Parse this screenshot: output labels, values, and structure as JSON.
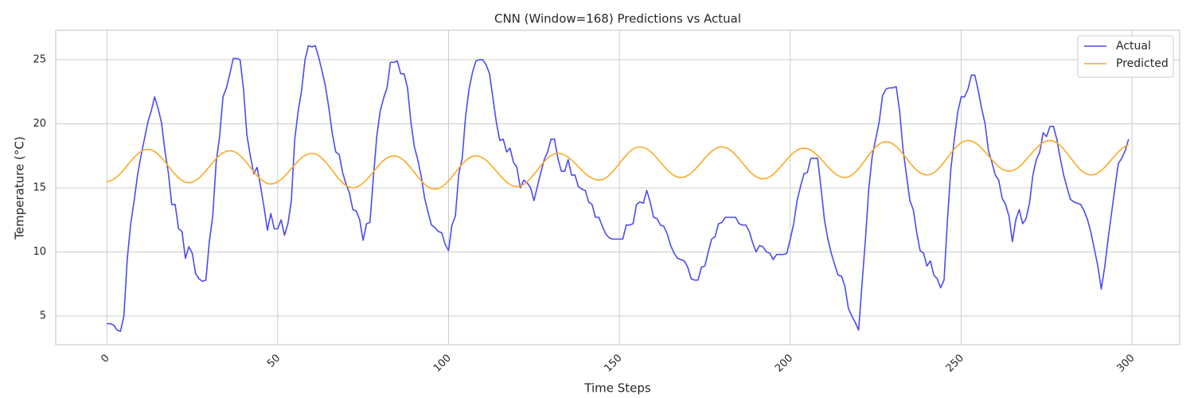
{
  "chart_data": {
    "type": "line",
    "title": "CNN (Window=168) Predictions vs Actual",
    "xlabel": "Time Steps",
    "ylabel": "Temperature (°C)",
    "x": [
      0,
      1,
      2,
      3,
      4,
      5,
      6,
      7,
      8,
      9,
      10,
      11,
      12,
      13,
      14,
      15,
      16,
      17,
      18,
      19,
      20,
      21,
      22,
      23,
      24,
      25,
      26,
      27,
      28,
      29,
      30,
      31,
      32,
      33,
      34,
      35,
      36,
      37,
      38,
      39,
      40,
      41,
      42,
      43,
      44,
      45,
      46,
      47,
      48,
      49,
      50,
      51,
      52,
      53,
      54,
      55,
      56,
      57,
      58,
      59,
      60,
      61,
      62,
      63,
      64,
      65,
      66,
      67,
      68,
      69,
      70,
      71,
      72,
      73,
      74,
      75,
      76,
      77,
      78,
      79,
      80,
      81,
      82,
      83,
      84,
      85,
      86,
      87,
      88,
      89,
      90,
      91,
      92,
      93,
      94,
      95,
      96,
      97,
      98,
      99,
      100,
      101,
      102,
      103,
      104,
      105,
      106,
      107,
      108,
      109,
      110,
      111,
      112,
      113,
      114,
      115,
      116,
      117,
      118,
      119,
      120,
      121,
      122,
      123,
      124,
      125,
      126,
      127,
      128,
      129,
      130,
      131,
      132,
      133,
      134,
      135,
      136,
      137,
      138,
      139,
      140,
      141,
      142,
      143,
      144,
      145,
      146,
      147,
      148,
      149,
      150,
      151,
      152,
      153,
      154,
      155,
      156,
      157,
      158,
      159,
      160,
      161,
      162,
      163,
      164,
      165,
      166,
      167,
      168,
      169,
      170,
      171,
      172,
      173,
      174,
      175,
      176,
      177,
      178,
      179,
      180,
      181,
      182,
      183,
      184,
      185,
      186,
      187,
      188,
      189,
      190,
      191,
      192,
      193,
      194,
      195,
      196,
      197,
      198,
      199,
      200,
      201,
      202,
      203,
      204,
      205,
      206,
      207,
      208,
      209,
      210,
      211,
      212,
      213,
      214,
      215,
      216,
      217,
      218,
      219,
      220,
      221,
      222,
      223,
      224,
      225,
      226,
      227,
      228,
      229,
      230,
      231,
      232,
      233,
      234,
      235,
      236,
      237,
      238,
      239,
      240,
      241,
      242,
      243,
      244,
      245,
      246,
      247,
      248,
      249,
      250,
      251,
      252,
      253,
      254,
      255,
      256,
      257,
      258,
      259,
      260,
      261,
      262,
      263,
      264,
      265,
      266,
      267,
      268,
      269,
      270,
      271,
      272,
      273,
      274,
      275,
      276,
      277,
      278,
      279,
      280,
      281,
      282,
      283,
      284,
      285,
      286,
      287,
      288,
      289,
      290,
      291,
      292,
      293,
      294,
      295,
      296,
      297,
      298,
      299
    ],
    "series": [
      {
        "name": "Actual",
        "color": "#4b4bf0",
        "values": [
          4.4,
          4.4,
          4.3,
          3.9,
          3.8,
          5.0,
          9.5,
          12.2,
          14.0,
          16.0,
          17.5,
          18.8,
          20.1,
          21.0,
          22.1,
          21.2,
          20.1,
          17.9,
          16.2,
          13.7,
          13.7,
          11.8,
          11.6,
          9.5,
          10.4,
          9.9,
          8.3,
          7.9,
          7.7,
          7.8,
          10.8,
          12.8,
          17.0,
          19.0,
          22.1,
          22.8,
          23.9,
          25.1,
          25.1,
          25.0,
          22.7,
          19.1,
          17.5,
          16.1,
          16.6,
          15.1,
          13.5,
          11.7,
          13.0,
          11.8,
          11.8,
          12.5,
          11.3,
          12.2,
          14.0,
          18.8,
          21.0,
          22.6,
          25.0,
          26.1,
          26.0,
          26.1,
          25.2,
          24.1,
          22.9,
          21.2,
          19.2,
          17.8,
          17.6,
          16.2,
          15.3,
          14.6,
          13.3,
          13.2,
          12.5,
          10.9,
          12.2,
          12.3,
          15.8,
          19.0,
          21.0,
          22.0,
          22.8,
          24.8,
          24.8,
          24.9,
          23.9,
          23.9,
          22.8,
          20.1,
          18.2,
          17.2,
          15.9,
          14.2,
          13.1,
          12.1,
          11.9,
          11.6,
          11.5,
          10.6,
          10.1,
          12.1,
          12.8,
          16.1,
          17.3,
          20.6,
          22.7,
          24.0,
          24.9,
          25.0,
          25.0,
          24.6,
          23.9,
          22.0,
          20.1,
          18.7,
          18.8,
          17.8,
          18.1,
          17.0,
          16.6,
          15.0,
          15.6,
          15.4,
          15.0,
          14.0,
          15.1,
          16.2,
          17.2,
          17.8,
          18.8,
          18.8,
          17.3,
          16.3,
          16.3,
          17.2,
          16.0,
          16.0,
          15.1,
          14.9,
          14.8,
          13.9,
          13.7,
          12.7,
          12.7,
          12.0,
          11.4,
          11.1,
          11.0,
          11.0,
          11.0,
          11.0,
          12.1,
          12.1,
          12.2,
          13.7,
          13.9,
          13.8,
          14.8,
          13.9,
          12.7,
          12.6,
          12.1,
          12.0,
          11.4,
          10.5,
          9.9,
          9.5,
          9.4,
          9.3,
          8.8,
          7.9,
          7.8,
          7.8,
          8.8,
          8.9,
          10.0,
          11.0,
          11.2,
          12.2,
          12.3,
          12.7,
          12.7,
          12.7,
          12.7,
          12.2,
          12.1,
          12.1,
          11.6,
          10.7,
          10.0,
          10.5,
          10.4,
          10.0,
          9.9,
          9.4,
          9.8,
          9.8,
          9.8,
          9.9,
          11.0,
          12.2,
          14.0,
          15.1,
          16.1,
          16.2,
          17.3,
          17.3,
          17.3,
          15.0,
          12.5,
          11.0,
          9.9,
          9.0,
          8.2,
          8.1,
          7.3,
          5.6,
          5.0,
          4.5,
          3.9,
          7.5,
          11.0,
          15.0,
          17.5,
          18.8,
          20.1,
          22.2,
          22.7,
          22.8,
          22.8,
          22.9,
          21.0,
          18.0,
          16.0,
          14.0,
          13.3,
          11.5,
          10.1,
          9.9,
          8.9,
          9.3,
          8.2,
          7.9,
          7.2,
          7.8,
          12.5,
          16.5,
          18.8,
          20.9,
          22.1,
          22.1,
          22.7,
          23.8,
          23.8,
          22.6,
          21.2,
          20.0,
          17.9,
          17.0,
          16.0,
          15.6,
          14.2,
          13.7,
          12.8,
          10.8,
          12.5,
          13.3,
          12.2,
          12.6,
          13.8,
          16.0,
          17.2,
          17.8,
          19.3,
          19.0,
          19.8,
          19.8,
          18.8,
          17.3,
          16.0,
          15.0,
          14.1,
          13.9,
          13.8,
          13.7,
          13.2,
          12.5,
          11.5,
          10.2,
          8.9,
          7.1,
          8.8,
          11.0,
          13.0,
          15.0,
          16.9,
          17.3,
          17.9,
          18.8
        ]
      },
      {
        "name": "Predicted",
        "color": "#f9aa25",
        "values": [
          15.5,
          15.54,
          15.67,
          15.87,
          16.13,
          16.43,
          16.75,
          17.07,
          17.38,
          17.64,
          17.83,
          17.96,
          18.0,
          17.96,
          17.83,
          17.62,
          17.35,
          17.04,
          16.7,
          16.36,
          16.05,
          15.78,
          15.57,
          15.44,
          15.4,
          15.44,
          15.57,
          15.77,
          16.03,
          16.33,
          16.65,
          16.97,
          17.28,
          17.54,
          17.73,
          17.86,
          17.9,
          17.86,
          17.73,
          17.52,
          17.25,
          16.94,
          16.6,
          16.26,
          15.95,
          15.68,
          15.47,
          15.34,
          15.3,
          15.34,
          15.46,
          15.65,
          15.9,
          16.19,
          16.5,
          16.81,
          17.1,
          17.35,
          17.54,
          17.66,
          17.7,
          17.65,
          17.52,
          17.31,
          17.02,
          16.7,
          16.35,
          16.0,
          15.67,
          15.39,
          15.18,
          15.05,
          15.0,
          15.04,
          15.17,
          15.37,
          15.63,
          15.93,
          16.25,
          16.57,
          16.88,
          17.14,
          17.33,
          17.46,
          17.5,
          17.46,
          17.33,
          17.12,
          16.85,
          16.54,
          16.2,
          15.86,
          15.55,
          15.28,
          15.07,
          14.94,
          14.9,
          14.94,
          15.07,
          15.28,
          15.55,
          15.86,
          16.2,
          16.54,
          16.85,
          17.12,
          17.33,
          17.46,
          17.5,
          17.46,
          17.34,
          17.15,
          16.9,
          16.61,
          16.3,
          15.99,
          15.7,
          15.45,
          15.26,
          15.14,
          15.1,
          15.14,
          15.27,
          15.48,
          15.75,
          16.06,
          16.4,
          16.74,
          17.05,
          17.32,
          17.53,
          17.66,
          17.7,
          17.66,
          17.56,
          17.39,
          17.17,
          16.92,
          16.65,
          16.38,
          16.12,
          15.91,
          15.74,
          15.64,
          15.6,
          15.64,
          15.77,
          15.98,
          16.25,
          16.56,
          16.9,
          17.24,
          17.55,
          17.82,
          18.03,
          18.16,
          18.2,
          18.16,
          18.04,
          17.85,
          17.6,
          17.31,
          17.0,
          16.69,
          16.4,
          16.15,
          15.96,
          15.84,
          15.8,
          15.84,
          15.96,
          16.15,
          16.4,
          16.69,
          17.0,
          17.31,
          17.6,
          17.85,
          18.04,
          18.16,
          18.2,
          18.16,
          18.03,
          17.83,
          17.57,
          17.27,
          16.95,
          16.63,
          16.32,
          16.06,
          15.87,
          15.74,
          15.7,
          15.74,
          15.86,
          16.05,
          16.3,
          16.59,
          16.9,
          17.21,
          17.5,
          17.75,
          17.94,
          18.06,
          18.1,
          18.06,
          17.95,
          17.76,
          17.52,
          17.25,
          16.95,
          16.65,
          16.37,
          16.14,
          15.95,
          15.84,
          15.8,
          15.85,
          15.99,
          16.21,
          16.5,
          16.84,
          17.2,
          17.56,
          17.9,
          18.19,
          18.41,
          18.55,
          18.6,
          18.56,
          18.43,
          18.22,
          17.95,
          17.64,
          17.3,
          16.96,
          16.65,
          16.38,
          16.17,
          16.04,
          16.0,
          16.05,
          16.18,
          16.39,
          16.68,
          17.0,
          17.35,
          17.7,
          18.03,
          18.31,
          18.52,
          18.65,
          18.7,
          18.66,
          18.54,
          18.35,
          18.1,
          17.81,
          17.5,
          17.19,
          16.9,
          16.65,
          16.46,
          16.34,
          16.3,
          16.34,
          16.46,
          16.65,
          16.9,
          17.19,
          17.5,
          17.81,
          18.1,
          18.35,
          18.54,
          18.66,
          18.7,
          18.65,
          18.52,
          18.31,
          18.02,
          17.7,
          17.35,
          17.0,
          16.67,
          16.39,
          16.18,
          16.05,
          16.0,
          16.04,
          16.16,
          16.35,
          16.6,
          16.89,
          17.2,
          17.51,
          17.8,
          18.05,
          18.24,
          18.36
        ]
      }
    ],
    "xlim": [
      -14.95,
      313.95
    ],
    "xticks": [
      0,
      50,
      100,
      150,
      200,
      250,
      300
    ],
    "ylim": [
      2.76,
      27.3
    ],
    "yticks": [
      5,
      10,
      15,
      20,
      25
    ],
    "grid": true,
    "legend": "upper right"
  }
}
